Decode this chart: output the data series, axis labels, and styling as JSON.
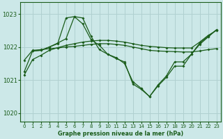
{
  "bg_color": "#cce8e8",
  "grid_color": "#b0d0d0",
  "line_color": "#1a5c1a",
  "xlabel": "Graphe pression niveau de la mer (hPa)",
  "ylim": [
    1019.75,
    1023.35
  ],
  "xlim": [
    -0.5,
    23.5
  ],
  "yticks": [
    1020,
    1021,
    1022,
    1023
  ],
  "xticks": [
    0,
    1,
    2,
    3,
    4,
    5,
    6,
    7,
    8,
    9,
    10,
    11,
    12,
    13,
    14,
    15,
    16,
    17,
    18,
    19,
    20,
    21,
    22,
    23
  ],
  "line1_x": [
    0,
    1,
    2,
    3,
    4,
    5,
    6,
    7,
    8,
    9,
    10,
    11,
    12,
    13,
    14,
    15,
    16,
    17,
    18,
    19,
    20,
    21,
    22,
    23
  ],
  "line1_y": [
    1021.15,
    1021.62,
    1021.75,
    1021.9,
    1021.98,
    1022.05,
    1022.1,
    1022.15,
    1022.18,
    1022.2,
    1022.2,
    1022.18,
    1022.15,
    1022.1,
    1022.05,
    1022.02,
    1022.0,
    1021.98,
    1021.97,
    1021.97,
    1021.97,
    1022.15,
    1022.35,
    1022.5
  ],
  "line2_x": [
    0,
    1,
    2,
    3,
    4,
    5,
    6,
    7,
    8,
    9,
    10,
    11,
    12,
    13,
    14,
    15,
    16,
    17,
    18,
    19,
    20,
    21,
    22,
    23
  ],
  "line2_y": [
    1021.6,
    1021.9,
    1021.92,
    1021.95,
    1021.97,
    1022.0,
    1022.02,
    1022.05,
    1022.08,
    1022.1,
    1022.1,
    1022.08,
    1022.05,
    1022.0,
    1021.95,
    1021.9,
    1021.88,
    1021.87,
    1021.86,
    1021.85,
    1021.85,
    1021.88,
    1021.92,
    1021.95
  ],
  "line3_x": [
    0,
    1,
    2,
    3,
    4,
    5,
    6,
    7,
    8,
    9,
    10,
    11,
    12,
    13,
    14,
    15,
    16,
    17,
    18,
    19,
    20,
    21,
    22,
    23
  ],
  "line3_y": [
    1021.25,
    1021.88,
    1021.9,
    1022.0,
    1022.1,
    1022.88,
    1022.92,
    1022.7,
    1022.22,
    1022.05,
    1021.78,
    1021.65,
    1021.55,
    1020.88,
    1020.72,
    1020.5,
    1020.82,
    1021.08,
    1021.42,
    1021.42,
    1021.78,
    1022.12,
    1022.32,
    1022.52
  ],
  "line4_x": [
    1,
    2,
    3,
    4,
    5,
    6,
    7,
    8,
    9,
    10,
    11,
    12,
    13,
    14,
    15,
    16,
    17,
    18,
    19,
    20,
    21,
    22,
    23
  ],
  "line4_y": [
    1021.88,
    1021.9,
    1022.0,
    1022.12,
    1022.25,
    1022.92,
    1022.88,
    1022.32,
    1021.92,
    1021.78,
    1021.68,
    1021.5,
    1020.95,
    1020.75,
    1020.5,
    1020.85,
    1021.12,
    1021.55,
    1021.55,
    1021.78,
    1022.08,
    1022.3,
    1022.52
  ]
}
